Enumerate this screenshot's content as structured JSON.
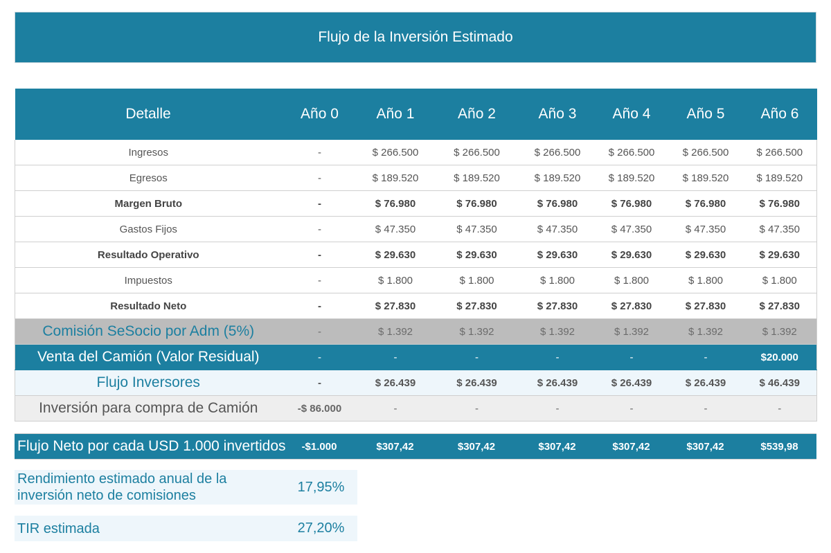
{
  "title": "Flujo de la Inversión Estimado",
  "header": [
    "Detalle",
    "Año 0",
    "Año 1",
    "Año 2",
    "Año 3",
    "Año 4",
    "Año 5",
    "Año 6"
  ],
  "rows": [
    {
      "label": "Ingresos",
      "values": [
        "-",
        "$ 266.500",
        "$ 266.500",
        "$ 266.500",
        "$ 266.500",
        "$ 266.500",
        "$ 266.500"
      ]
    },
    {
      "label": "Egresos",
      "values": [
        "-",
        "$ 189.520",
        "$ 189.520",
        "$ 189.520",
        "$ 189.520",
        "$ 189.520",
        "$ 189.520"
      ]
    },
    {
      "label": "Margen Bruto",
      "values": [
        "-",
        "$ 76.980",
        "$ 76.980",
        "$ 76.980",
        "$ 76.980",
        "$ 76.980",
        "$ 76.980"
      ]
    },
    {
      "label": "Gastos Fijos",
      "values": [
        "-",
        "$ 47.350",
        "$ 47.350",
        "$ 47.350",
        "$ 47.350",
        "$ 47.350",
        "$ 47.350"
      ]
    },
    {
      "label": "Resultado Operativo",
      "values": [
        "-",
        "$ 29.630",
        "$ 29.630",
        "$ 29.630",
        "$ 29.630",
        "$ 29.630",
        "$ 29.630"
      ]
    },
    {
      "label": "Impuestos",
      "values": [
        "-",
        "$ 1.800",
        "$ 1.800",
        "$ 1.800",
        "$ 1.800",
        "$ 1.800",
        "$ 1.800"
      ]
    },
    {
      "label": "Resultado Neto",
      "values": [
        "-",
        "$ 27.830",
        "$ 27.830",
        "$ 27.830",
        "$ 27.830",
        "$ 27.830",
        "$ 27.830"
      ]
    },
    {
      "label": "Comisión SeSocio por Adm (5%)",
      "values": [
        "-",
        "$ 1.392",
        "$ 1.392",
        "$ 1.392",
        "$ 1.392",
        "$ 1.392",
        "$ 1.392"
      ]
    },
    {
      "label": "Venta del Camión (Valor Residual)",
      "values": [
        "-",
        "-",
        "-",
        "-",
        "-",
        "-",
        "$20.000"
      ]
    },
    {
      "label": "Flujo Inversores",
      "values": [
        "-",
        "$ 26.439",
        "$ 26.439",
        "$ 26.439",
        "$ 26.439",
        "$ 26.439",
        "$ 46.439"
      ]
    },
    {
      "label": "Inversión para compra de Camión",
      "values": [
        "-$ 86.000",
        "-",
        "-",
        "-",
        "-",
        "-",
        "-"
      ]
    }
  ],
  "neto": {
    "label": "Flujo Neto por cada USD 1.000 invertidos",
    "values": [
      "-$1.000",
      "$307,42",
      "$307,42",
      "$307,42",
      "$307,42",
      "$307,42",
      "$539,98"
    ]
  },
  "rendimiento": {
    "label": "Rendimiento estimado anual de la inversión neto de comisiones",
    "value": "17,95%"
  },
  "tir": {
    "label": "TIR estimada",
    "value": "27,20%"
  },
  "colors": {
    "accent": "#1c7fa0",
    "grey_row": "#bcbcbc",
    "light_row": "#eef6fb"
  }
}
